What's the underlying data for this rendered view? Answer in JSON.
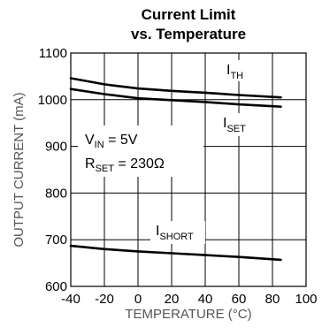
{
  "chart_data": {
    "type": "line",
    "title_lines": [
      "Current Limit",
      "vs. Temperature"
    ],
    "xlabel": "TEMPERATURE (°C)",
    "ylabel": "OUTPUT CURRENT (mA)",
    "xlim": [
      -40,
      100
    ],
    "ylim": [
      600,
      1100
    ],
    "x_ticks": [
      -40,
      -20,
      0,
      20,
      40,
      60,
      80,
      100
    ],
    "y_ticks": [
      600,
      700,
      800,
      900,
      1000,
      1100
    ],
    "grid": true,
    "conditions": {
      "vin": {
        "main": "V",
        "sub": "IN",
        "rest": " = 5V"
      },
      "rset": {
        "main": "R",
        "sub": "SET",
        "rest": " = 230Ω"
      }
    },
    "series": [
      {
        "label_main": "I",
        "label_sub": "TH",
        "x": [
          -40,
          -20,
          0,
          20,
          40,
          60,
          85
        ],
        "y": [
          1046,
          1033,
          1024,
          1019,
          1015,
          1010,
          1005
        ]
      },
      {
        "label_main": "I",
        "label_sub": "SET",
        "x": [
          -40,
          -20,
          0,
          20,
          40,
          60,
          85
        ],
        "y": [
          1023,
          1012,
          1003,
          999,
          995,
          990,
          985
        ]
      },
      {
        "label_main": "I",
        "label_sub": "SHORT",
        "x": [
          -40,
          -20,
          0,
          20,
          40,
          60,
          85
        ],
        "y": [
          687,
          680,
          675,
          671,
          667,
          663,
          657
        ]
      }
    ]
  }
}
